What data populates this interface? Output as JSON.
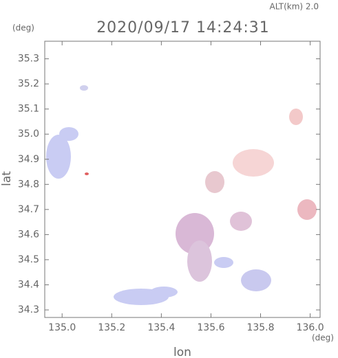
{
  "chart_data": {
    "type": "map",
    "title": "2020/09/17 14:24:31",
    "subtitle": "ALT(km) 2.0",
    "y_unit": "(deg)",
    "x_unit": "(deg)",
    "x_label": "lon",
    "y_label": "lat",
    "xlim": [
      134.93,
      136.04
    ],
    "ylim": [
      34.27,
      35.37
    ],
    "xticks": [
      {
        "value": 135.0,
        "label": "135.0"
      },
      135.2,
      135.4,
      135.6,
      135.8,
      {
        "value": 136.0,
        "label": "136.0"
      }
    ],
    "yticks": [
      {
        "value": 34.3,
        "label": "34.3"
      },
      34.4,
      34.5,
      34.6,
      34.7,
      34.8,
      34.9,
      {
        "value": 35.0,
        "label": "35.0"
      },
      35.1,
      35.2,
      35.3
    ]
  }
}
